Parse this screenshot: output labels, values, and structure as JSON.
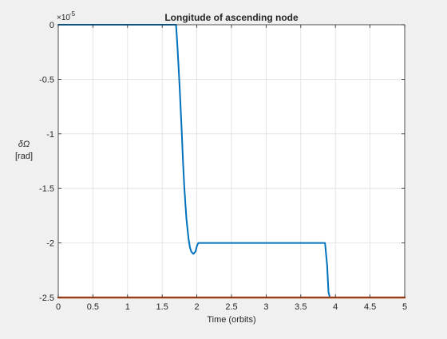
{
  "chart_data": {
    "type": "line",
    "title": "Longitude of ascending node",
    "xlabel": "Time (orbits)",
    "ylabel_symbol": "δΩ",
    "ylabel_unit": "[rad]",
    "y_exponent_base": "×10",
    "y_exponent": "-5",
    "xlim": [
      0,
      5
    ],
    "ylim": [
      -2.5,
      0
    ],
    "y_multiplier": 1e-05,
    "xticks": [
      0,
      0.5,
      1,
      1.5,
      2,
      2.5,
      3,
      3.5,
      4,
      4.5,
      5
    ],
    "xtick_labels": [
      "0",
      "0.5",
      "1",
      "1.5",
      "2",
      "2.5",
      "3",
      "3.5",
      "4",
      "4.5",
      "5"
    ],
    "yticks": [
      0,
      -0.5,
      -1,
      -1.5,
      -2,
      -2.5
    ],
    "ytick_labels": [
      "0",
      "-0.5",
      "-1",
      "-1.5",
      "-2",
      "-2.5"
    ],
    "grid": true,
    "legend": false,
    "series": [
      {
        "color": "#0072BD",
        "x": [
          0,
          1.7,
          1.72,
          1.75,
          1.78,
          1.8,
          1.82,
          1.85,
          1.88,
          1.9,
          1.92,
          1.95,
          1.98,
          2.0,
          2.02,
          2.05,
          3.85,
          3.88,
          3.9,
          3.92,
          5.0
        ],
        "y": [
          0,
          0,
          -0.2,
          -0.55,
          -0.95,
          -1.25,
          -1.5,
          -1.78,
          -1.96,
          -2.04,
          -2.08,
          -2.1,
          -2.08,
          -2.03,
          -2.0,
          -2.0,
          -2.0,
          -2.2,
          -2.45,
          -2.5,
          -2.5
        ]
      },
      {
        "color": "#D95319",
        "x": [
          0,
          5
        ],
        "y": [
          -2.5,
          -2.5
        ]
      }
    ]
  }
}
